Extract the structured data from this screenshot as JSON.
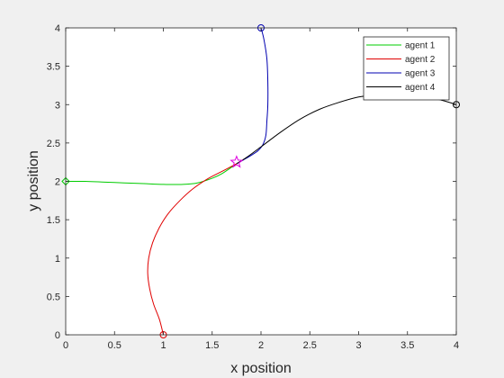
{
  "chart_data": {
    "type": "line",
    "xlabel": "x position",
    "ylabel": "y position",
    "xlim": [
      0,
      4
    ],
    "ylim": [
      0,
      4
    ],
    "xticks": [
      "0",
      "0.5",
      "1",
      "1.5",
      "2",
      "2.5",
      "3",
      "3.5",
      "4"
    ],
    "yticks": [
      "0",
      "0.5",
      "1",
      "1.5",
      "2",
      "2.5",
      "3",
      "3.5",
      "4"
    ],
    "grid": false,
    "legend_position": "top-right",
    "series": [
      {
        "name": "agent 1",
        "color": "#00cc00",
        "start_marker": "diamond",
        "x": [
          0,
          0.2,
          0.4,
          0.6,
          0.8,
          1.0,
          1.2,
          1.35,
          1.5,
          1.6,
          1.75
        ],
        "y": [
          2.0,
          2.0,
          1.99,
          1.98,
          1.97,
          1.96,
          1.96,
          1.98,
          2.04,
          2.1,
          2.23
        ]
      },
      {
        "name": "agent 2",
        "color": "#e00000",
        "start_marker": "circle",
        "x": [
          1.0,
          0.96,
          0.9,
          0.86,
          0.84,
          0.85,
          0.89,
          0.96,
          1.05,
          1.17,
          1.3,
          1.45,
          1.6,
          1.75
        ],
        "y": [
          0.0,
          0.2,
          0.4,
          0.6,
          0.8,
          1.0,
          1.2,
          1.4,
          1.58,
          1.75,
          1.9,
          2.03,
          2.13,
          2.23
        ]
      },
      {
        "name": "agent 3",
        "color": "#0000b0",
        "start_marker": "circle",
        "x": [
          2.0,
          2.03,
          2.06,
          2.07,
          2.07,
          2.06,
          2.05,
          2.02,
          1.97,
          1.9,
          1.82,
          1.75
        ],
        "y": [
          4.0,
          3.85,
          3.6,
          3.3,
          3.0,
          2.78,
          2.6,
          2.48,
          2.4,
          2.34,
          2.28,
          2.23
        ]
      },
      {
        "name": "agent 4",
        "color": "#000000",
        "start_marker": "circle",
        "x": [
          4.0,
          3.9,
          3.75,
          3.6,
          3.4,
          3.2,
          3.0,
          2.8,
          2.6,
          2.4,
          2.2,
          2.0,
          1.85,
          1.75
        ],
        "y": [
          3.0,
          3.04,
          3.09,
          3.12,
          3.14,
          3.13,
          3.1,
          3.03,
          2.94,
          2.81,
          2.64,
          2.45,
          2.31,
          2.23
        ]
      }
    ],
    "meeting_point": {
      "x": 1.75,
      "y": 2.25,
      "marker": "star",
      "color": "#e000e0"
    }
  }
}
